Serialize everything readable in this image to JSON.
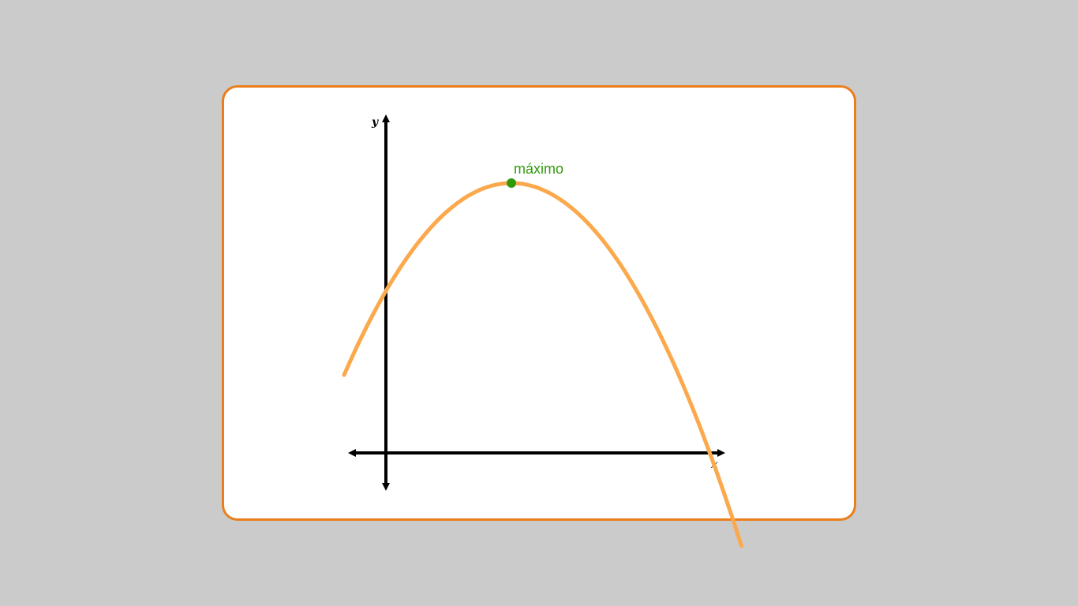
{
  "diagram": {
    "x_axis_label": "x",
    "y_axis_label": "y",
    "max_label": "máximo",
    "curve": {
      "type": "downward parabola",
      "vertex": {
        "x": 3,
        "y": 9
      },
      "leading_coefficient": -0.4,
      "x_range": [
        -1,
        8.5
      ]
    }
  },
  "colors": {
    "background": "#cbcbcb",
    "card_border": "#ea7e1b",
    "curve": "#fba94c",
    "max_point": "#2f9a0c",
    "axes": "#000000"
  }
}
